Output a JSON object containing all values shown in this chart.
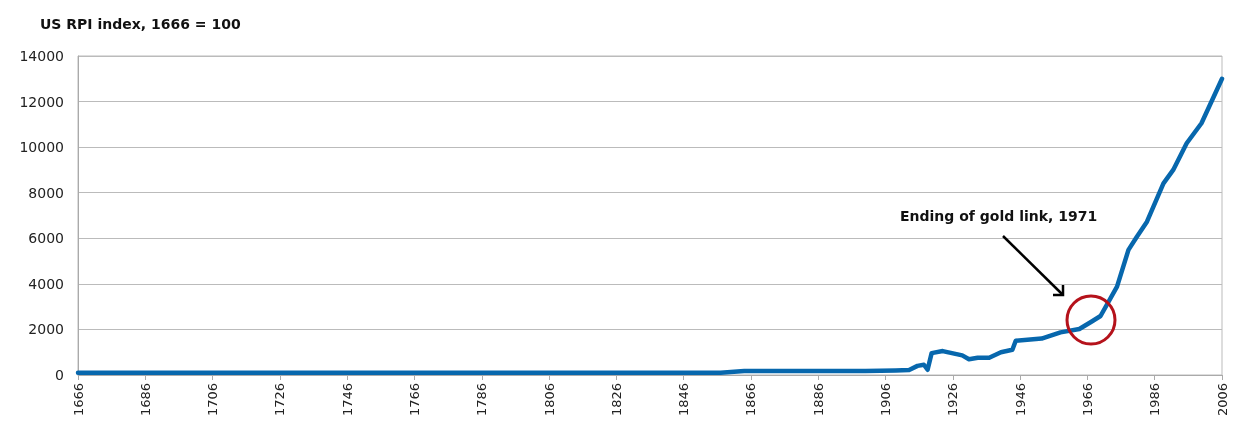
{
  "chart_data": {
    "type": "line",
    "title": "US RPI index, 1666 = 100",
    "x": [
      1666,
      1700,
      1750,
      1800,
      1850,
      1857,
      1864,
      1880,
      1900,
      1909,
      1913,
      1915.5,
      1917.4,
      1918.5,
      1919.7,
      1923,
      1928.8,
      1930.8,
      1933.4,
      1936.8,
      1940.3,
      1943.7,
      1944.7,
      1952.4,
      1958,
      1963.6,
      1967.3,
      1969.9,
      1974.8,
      1978.2,
      1980.7,
      1983.7,
      1988.6,
      1991.5,
      1995.5,
      1999.9,
      2006
    ],
    "series": [
      {
        "color": "#0767ad",
        "values": [
          100,
          100,
          100,
          100,
          100,
          100,
          180,
          180,
          180,
          200,
          220,
          400,
          450,
          230,
          960,
          1050,
          860,
          690,
          760,
          760,
          1000,
          1110,
          1500,
          1600,
          1870,
          2020,
          2350,
          2590,
          3880,
          5490,
          6070,
          6730,
          8410,
          9000,
          10170,
          11050,
          13000
        ]
      }
    ],
    "xlim": [
      1666,
      2006
    ],
    "xticks": [
      1666,
      1686,
      1706,
      1726,
      1746,
      1766,
      1786,
      1806,
      1826,
      1846,
      1866,
      1886,
      1906,
      1926,
      1946,
      1966,
      1986,
      2006
    ],
    "ylim": [
      0,
      14000
    ],
    "yticks": [
      0,
      2000,
      4000,
      6000,
      8000,
      10000,
      12000,
      14000
    ],
    "grid": "y",
    "marker": "none",
    "line_style": "solid",
    "annotations": [
      "Ending of gold link, 1971"
    ]
  }
}
